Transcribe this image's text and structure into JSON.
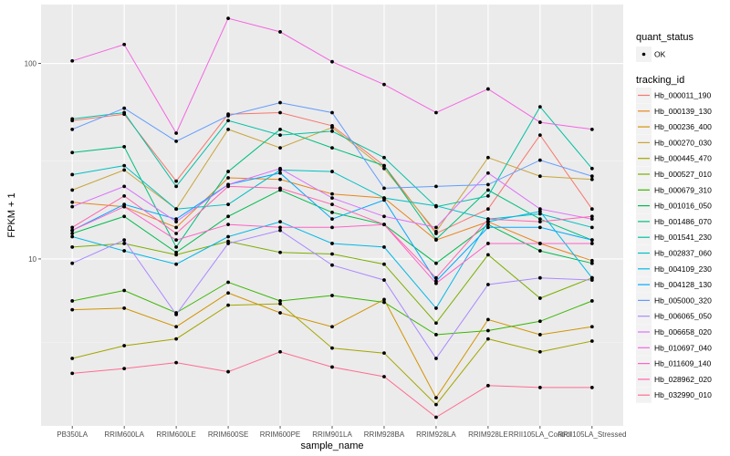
{
  "chart_data": {
    "type": "line",
    "title": "",
    "xlabel": "sample_name",
    "ylabel": "FPKM + 1",
    "y_scale": "log10",
    "ylim": [
      1.4,
      200
    ],
    "y_ticks": [
      10,
      100
    ],
    "y_tick_labels": [
      "10",
      "100"
    ],
    "grid": true,
    "legend_position": "right",
    "categories": [
      "PB350LA",
      "RRIM600LA",
      "RRIM600LE",
      "RRIM600SE",
      "RRIM600PE",
      "RRIM901LA",
      "RRIM928BA",
      "RRIM928LA",
      "RRIM928LE",
      "RRII105LA_Control",
      "RRII105LA_Stressed"
    ],
    "legends": [
      {
        "title": "quant_status",
        "entries": [
          {
            "label": "OK",
            "symbol": "point"
          }
        ]
      },
      {
        "title": "tracking_id"
      }
    ],
    "series": [
      {
        "name": "Hb_000011_190",
        "color": "#F8766D",
        "values": [
          51,
          55,
          25,
          55,
          56,
          48,
          30,
          13.5,
          18,
          43,
          18
        ]
      },
      {
        "name": "Hb_000139_130",
        "color": "#E7851E",
        "values": [
          19.5,
          18.5,
          14.5,
          26,
          25.5,
          21.5,
          20.5,
          12.5,
          15.5,
          12,
          9.8
        ]
      },
      {
        "name": "Hb_000236_400",
        "color": "#D09400",
        "values": [
          5.5,
          5.6,
          4.5,
          6.7,
          5.3,
          4.5,
          6.2,
          1.95,
          4.9,
          4.1,
          4.5
        ]
      },
      {
        "name": "Hb_000270_030",
        "color": "#C9A43B",
        "values": [
          22.5,
          28.5,
          18,
          46,
          37,
          47,
          29,
          13.8,
          33,
          26.5,
          25.5
        ]
      },
      {
        "name": "Hb_000445_470",
        "color": "#A3A500",
        "values": [
          3.1,
          3.6,
          3.9,
          5.8,
          5.9,
          3.5,
          3.3,
          1.8,
          3.9,
          3.35,
          3.8
        ]
      },
      {
        "name": "Hb_000527_010",
        "color": "#7CAE00",
        "values": [
          11.5,
          12,
          10.5,
          12.3,
          10.8,
          10.6,
          9.4,
          4.7,
          10.5,
          6.3,
          8
        ]
      },
      {
        "name": "Hb_000679_310",
        "color": "#39B600",
        "values": [
          6.1,
          6.9,
          5.3,
          7.6,
          6.1,
          6.5,
          6,
          4.1,
          4.3,
          4.8,
          6.1
        ]
      },
      {
        "name": "Hb_001016_050",
        "color": "#00BB4E",
        "values": [
          13.5,
          16.5,
          10.8,
          16.5,
          22.5,
          17.3,
          15,
          9.5,
          15,
          11,
          9.5
        ]
      },
      {
        "name": "Hb_001486_070",
        "color": "#00BF7D",
        "values": [
          35,
          37.5,
          11.5,
          28,
          46,
          37,
          30,
          12.6,
          22.5,
          16,
          12.5
        ]
      },
      {
        "name": "Hb_001541_230",
        "color": "#00C1A3",
        "values": [
          52,
          56,
          23.5,
          51,
          43,
          45,
          33,
          18.5,
          21,
          60,
          29
        ]
      },
      {
        "name": "Hb_002837_060",
        "color": "#00BFC4",
        "values": [
          27,
          30,
          18,
          19,
          28.5,
          28,
          20.5,
          18.7,
          16,
          17,
          14.5
        ]
      },
      {
        "name": "Hb_004109_230",
        "color": "#00B8E7",
        "values": [
          13,
          11,
          9.4,
          13,
          15.5,
          12,
          11.5,
          5.6,
          15.5,
          17.5,
          8
        ]
      },
      {
        "name": "Hb_004128_130",
        "color": "#00A9FF",
        "values": [
          14,
          19,
          16,
          24,
          27.5,
          16,
          20,
          7.7,
          14.5,
          14.5,
          12.5
        ]
      },
      {
        "name": "Hb_005000_320",
        "color": "#619CFF",
        "values": [
          46,
          59,
          40,
          54,
          63,
          56,
          23,
          23.5,
          24,
          32,
          26.5
        ]
      },
      {
        "name": "Hb_006065_050",
        "color": "#AC88FF",
        "values": [
          9.5,
          12.5,
          5.2,
          12,
          14,
          9.3,
          7.8,
          3.1,
          7.4,
          8,
          7.8
        ]
      },
      {
        "name": "Hb_006658_020",
        "color": "#DB72FB",
        "values": [
          18.5,
          23.5,
          15.5,
          24,
          29,
          20.5,
          16.5,
          14.5,
          27.5,
          18,
          16
        ]
      },
      {
        "name": "Hb_010697_040",
        "color": "#F564E3",
        "values": [
          103,
          125,
          44,
          170,
          145,
          102,
          78,
          56,
          74,
          50,
          46
        ]
      },
      {
        "name": "Hb_011609_140",
        "color": "#FF61C9",
        "values": [
          14,
          18.5,
          12.5,
          15,
          14.5,
          14.5,
          15,
          7.5,
          12,
          12,
          12
        ]
      },
      {
        "name": "Hb_028962_020",
        "color": "#FF65AE",
        "values": [
          14.5,
          21,
          13.5,
          23.5,
          23,
          19,
          15,
          8,
          16,
          15.5,
          16.5
        ]
      },
      {
        "name": "Hb_032990_010",
        "color": "#FF6C91",
        "values": [
          2.6,
          2.75,
          2.95,
          2.65,
          3.35,
          2.8,
          2.5,
          1.55,
          2.25,
          2.2,
          2.2
        ]
      }
    ]
  }
}
